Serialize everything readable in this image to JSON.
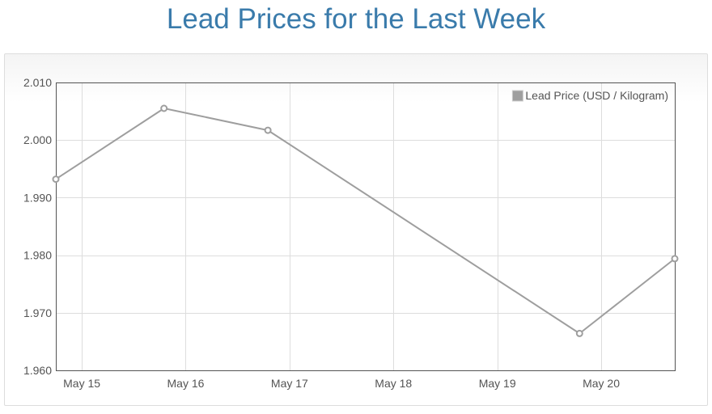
{
  "page": {
    "title": "Lead Prices for the Last Week"
  },
  "colors": {
    "title": "#3a7bab",
    "series": "#9e9e9e",
    "grid": "#dddddd",
    "axis_text": "#545454",
    "frame": "#545454"
  },
  "chart_data": {
    "type": "line",
    "title": "Lead Prices for the Last Week",
    "xlabel": "",
    "ylabel": "",
    "x_tick_labels": [
      "May 15",
      "May 16",
      "May 17",
      "May 18",
      "May 19",
      "May 20"
    ],
    "xlim": [
      "2014-05-14T18:00",
      "2014-05-20T17:00"
    ],
    "ylim": [
      1.96,
      2.01
    ],
    "y_ticks": [
      "2.010",
      "2.000",
      "1.990",
      "1.980",
      "1.970",
      "1.960"
    ],
    "grid": true,
    "legend_position": "top-right",
    "series": [
      {
        "name": "Lead Price (USD / Kilogram)",
        "x": [
          "2014-05-14T18:00",
          "2014-05-15T19:00",
          "2014-05-16T19:00",
          "2014-05-19T19:00",
          "2014-05-20T17:00"
        ],
        "values": [
          1.9932,
          2.0055,
          2.0017,
          1.9664,
          1.9794
        ]
      }
    ]
  }
}
